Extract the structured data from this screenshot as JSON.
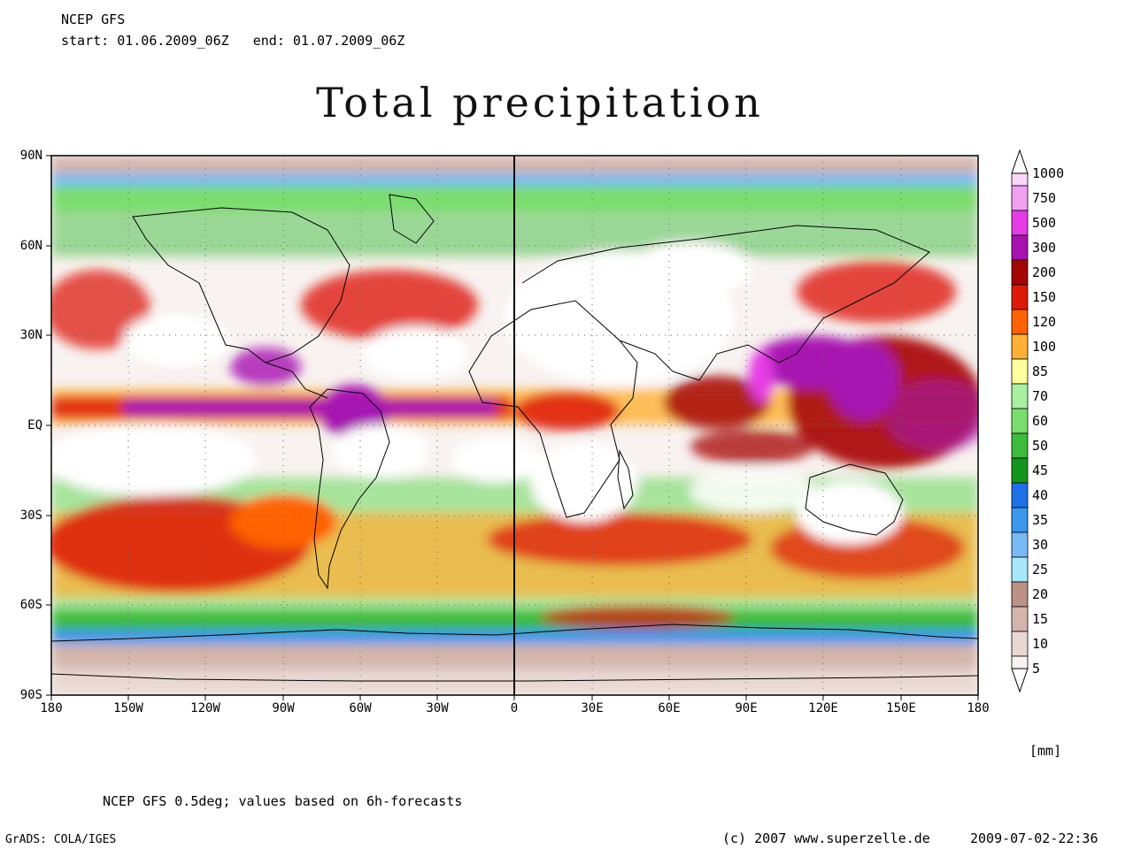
{
  "header": {
    "model": "NCEP GFS",
    "period_start_label": "start:",
    "period_start": "01.06.2009_06Z",
    "period_end_label": "end:",
    "period_end": "01.07.2009_06Z"
  },
  "title": "Total precipitation",
  "map": {
    "projection": "equirectangular",
    "extent": {
      "lon": [
        -180,
        180
      ],
      "lat": [
        -90,
        90
      ]
    },
    "lat_ticks": [
      "90N",
      "60N",
      "30N",
      "EQ",
      "30S",
      "60S",
      "90S"
    ],
    "lon_ticks": [
      "180",
      "150W",
      "120W",
      "90W",
      "60W",
      "30W",
      "0",
      "30E",
      "60E",
      "90E",
      "120E",
      "150E",
      "180"
    ],
    "grid": true,
    "field": "total precipitation"
  },
  "colorbar": {
    "unit": "[mm]",
    "levels": [
      "1000",
      "750",
      "500",
      "300",
      "200",
      "150",
      "120",
      "100",
      "85",
      "70",
      "60",
      "50",
      "45",
      "40",
      "35",
      "30",
      "25",
      "20",
      "15",
      "10",
      "5"
    ],
    "colors": [
      "#fbd6fb",
      "#f0a0f0",
      "#e53ce5",
      "#a712b0",
      "#a50505",
      "#dd1a0a",
      "#ff6200",
      "#ffb035",
      "#ffff9d",
      "#a8f0a0",
      "#7bdc6e",
      "#3cbb3c",
      "#14961e",
      "#1e70e6",
      "#3a96ee",
      "#78baf5",
      "#a9e7fa",
      "#bb9188",
      "#d3b5ac",
      "#e9d8d2",
      "#f8f2f0"
    ]
  },
  "footer": {
    "note": "NCEP GFS 0.5deg; values based on 6h-forecasts",
    "software": "GrADS: COLA/IGES",
    "copyright": "(c) 2007 www.superzelle.de",
    "timestamp": "2009-07-02-22:36"
  }
}
